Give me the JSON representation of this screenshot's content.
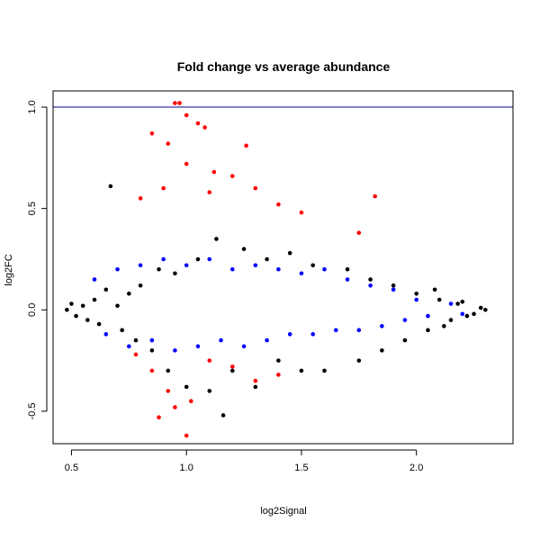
{
  "chart_data": {
    "type": "scatter",
    "title": "Fold change vs average abundance",
    "xlabel": "log2Signal",
    "ylabel": "log2FC",
    "xlim": [
      0.42,
      2.42
    ],
    "ylim": [
      -0.66,
      1.08
    ],
    "xticks": [
      0.5,
      1.0,
      1.5,
      2.0
    ],
    "xtick_labels": [
      "0.5",
      "1.0",
      "1.5",
      "2.0"
    ],
    "yticks": [
      -0.5,
      0.0,
      0.5,
      1.0
    ],
    "ytick_labels": [
      "-0.5",
      "0.0",
      "0.5",
      "1.0"
    ],
    "hline": {
      "y": 1.0,
      "color": "#00008b"
    },
    "grid": false,
    "legend": "none",
    "series": [
      {
        "color": "#000000",
        "points": [
          [
            0.48,
            0.0
          ],
          [
            0.5,
            0.03
          ],
          [
            0.52,
            -0.03
          ],
          [
            0.55,
            0.02
          ],
          [
            0.57,
            -0.05
          ],
          [
            0.6,
            0.05
          ],
          [
            0.62,
            -0.07
          ],
          [
            0.65,
            0.1
          ],
          [
            0.67,
            0.61
          ],
          [
            0.7,
            0.02
          ],
          [
            0.72,
            -0.1
          ],
          [
            0.75,
            0.08
          ],
          [
            0.78,
            -0.15
          ],
          [
            0.8,
            0.12
          ],
          [
            0.85,
            -0.2
          ],
          [
            0.88,
            0.2
          ],
          [
            0.92,
            -0.3
          ],
          [
            0.95,
            0.18
          ],
          [
            1.0,
            -0.38
          ],
          [
            1.05,
            0.25
          ],
          [
            1.1,
            -0.4
          ],
          [
            1.13,
            0.35
          ],
          [
            1.16,
            -0.52
          ],
          [
            1.2,
            -0.3
          ],
          [
            1.25,
            0.3
          ],
          [
            1.3,
            -0.38
          ],
          [
            1.35,
            0.25
          ],
          [
            1.4,
            -0.25
          ],
          [
            1.45,
            0.28
          ],
          [
            1.5,
            -0.3
          ],
          [
            1.55,
            0.22
          ],
          [
            1.6,
            -0.3
          ],
          [
            1.7,
            0.2
          ],
          [
            1.75,
            -0.25
          ],
          [
            1.8,
            0.15
          ],
          [
            1.85,
            -0.2
          ],
          [
            1.9,
            0.12
          ],
          [
            1.95,
            -0.15
          ],
          [
            2.0,
            0.08
          ],
          [
            2.05,
            -0.1
          ],
          [
            2.1,
            0.05
          ],
          [
            2.15,
            -0.05
          ],
          [
            2.2,
            0.04
          ],
          [
            2.25,
            -0.02
          ],
          [
            2.3,
            0.0
          ],
          [
            2.08,
            0.1
          ],
          [
            2.12,
            -0.08
          ],
          [
            2.18,
            0.03
          ],
          [
            2.22,
            -0.03
          ],
          [
            2.28,
            0.01
          ]
        ]
      },
      {
        "color": "#0000ff",
        "points": [
          [
            0.6,
            0.15
          ],
          [
            0.65,
            -0.12
          ],
          [
            0.7,
            0.2
          ],
          [
            0.75,
            -0.18
          ],
          [
            0.8,
            0.22
          ],
          [
            0.85,
            -0.15
          ],
          [
            0.9,
            0.25
          ],
          [
            0.95,
            -0.2
          ],
          [
            1.0,
            0.22
          ],
          [
            1.05,
            -0.18
          ],
          [
            1.1,
            0.25
          ],
          [
            1.15,
            -0.15
          ],
          [
            1.2,
            0.2
          ],
          [
            1.25,
            -0.18
          ],
          [
            1.3,
            0.22
          ],
          [
            1.35,
            -0.15
          ],
          [
            1.4,
            0.2
          ],
          [
            1.45,
            -0.12
          ],
          [
            1.5,
            0.18
          ],
          [
            1.55,
            -0.12
          ],
          [
            1.6,
            0.2
          ],
          [
            1.65,
            -0.1
          ],
          [
            1.7,
            0.15
          ],
          [
            1.75,
            -0.1
          ],
          [
            1.8,
            0.12
          ],
          [
            1.85,
            -0.08
          ],
          [
            1.9,
            0.1
          ],
          [
            1.95,
            -0.05
          ],
          [
            2.0,
            0.05
          ],
          [
            2.05,
            -0.03
          ],
          [
            2.15,
            0.03
          ],
          [
            2.2,
            -0.02
          ]
        ]
      },
      {
        "color": "#ff0000",
        "points": [
          [
            0.95,
            1.02
          ],
          [
            0.97,
            1.02
          ],
          [
            1.0,
            0.96
          ],
          [
            1.05,
            0.92
          ],
          [
            1.08,
            0.9
          ],
          [
            1.26,
            0.81
          ],
          [
            0.85,
            0.87
          ],
          [
            0.92,
            0.82
          ],
          [
            1.0,
            0.72
          ],
          [
            1.12,
            0.68
          ],
          [
            1.2,
            0.66
          ],
          [
            1.3,
            0.6
          ],
          [
            0.8,
            0.55
          ],
          [
            0.9,
            0.6
          ],
          [
            1.1,
            0.58
          ],
          [
            1.4,
            0.52
          ],
          [
            1.5,
            0.48
          ],
          [
            1.82,
            0.56
          ],
          [
            1.75,
            0.38
          ],
          [
            0.95,
            -0.48
          ],
          [
            1.0,
            -0.62
          ],
          [
            1.02,
            -0.45
          ],
          [
            0.88,
            -0.53
          ],
          [
            0.92,
            -0.4
          ],
          [
            0.85,
            -0.3
          ],
          [
            1.2,
            -0.28
          ],
          [
            1.3,
            -0.35
          ],
          [
            1.4,
            -0.32
          ],
          [
            1.1,
            -0.25
          ],
          [
            0.78,
            -0.22
          ]
        ]
      }
    ]
  }
}
